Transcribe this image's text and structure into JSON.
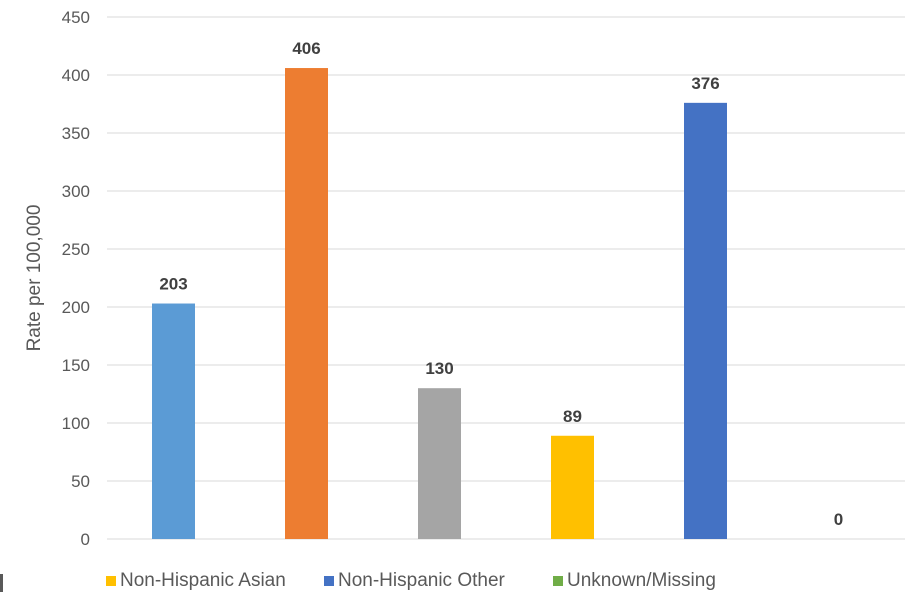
{
  "chart_data": {
    "type": "bar",
    "ylabel": "Rate per 100,000",
    "ylim": [
      0,
      450
    ],
    "yticks": [
      0,
      50,
      100,
      150,
      200,
      250,
      300,
      350,
      400,
      450
    ],
    "grid": true,
    "series": [
      {
        "value": 203,
        "label": "203",
        "color": "#5B9BD5"
      },
      {
        "value": 406,
        "label": "406",
        "color": "#ED7D31"
      },
      {
        "value": 130,
        "label": "130",
        "color": "#A5A5A5"
      },
      {
        "value": 89,
        "label": "89",
        "color": "#FFC000"
      },
      {
        "value": 376,
        "label": "376",
        "color": "#4472C4"
      },
      {
        "value": 0,
        "label": "0",
        "color": "#70AD47"
      }
    ],
    "legend": {
      "placement": "bottom",
      "entries": [
        {
          "name": "Non-Hispanic Asian",
          "color": "#FFC000"
        },
        {
          "name": "Non-Hispanic Other",
          "color": "#4472C4"
        },
        {
          "name": "Unknown/Missing",
          "color": "#70AD47"
        }
      ]
    }
  }
}
